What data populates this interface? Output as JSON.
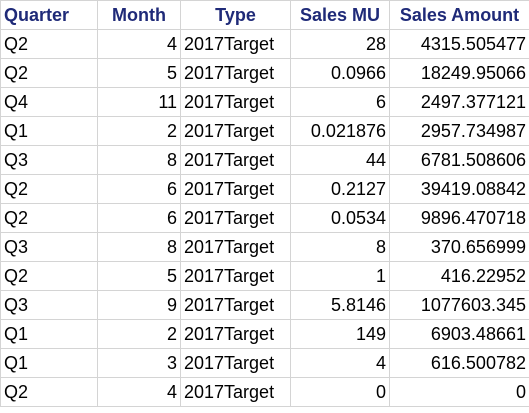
{
  "sheet": {
    "header_color": "#1f2a78",
    "columns": [
      "Quarter",
      "Month",
      "Type",
      "Sales MU",
      "Sales Amount"
    ],
    "rows": [
      {
        "quarter": "Q2",
        "month": "4",
        "type": "2017Target",
        "sales_mu": "28",
        "sales_amount": "4315.505477"
      },
      {
        "quarter": "Q2",
        "month": "5",
        "type": "2017Target",
        "sales_mu": "0.0966",
        "sales_amount": "18249.95066"
      },
      {
        "quarter": "Q4",
        "month": "11",
        "type": "2017Target",
        "sales_mu": "6",
        "sales_amount": "2497.377121"
      },
      {
        "quarter": "Q1",
        "month": "2",
        "type": "2017Target",
        "sales_mu": "0.021876",
        "sales_amount": "2957.734987"
      },
      {
        "quarter": "Q3",
        "month": "8",
        "type": "2017Target",
        "sales_mu": "44",
        "sales_amount": "6781.508606"
      },
      {
        "quarter": "Q2",
        "month": "6",
        "type": "2017Target",
        "sales_mu": "0.2127",
        "sales_amount": "39419.08842"
      },
      {
        "quarter": "Q2",
        "month": "6",
        "type": "2017Target",
        "sales_mu": "0.0534",
        "sales_amount": "9896.470718"
      },
      {
        "quarter": "Q3",
        "month": "8",
        "type": "2017Target",
        "sales_mu": "8",
        "sales_amount": "370.656999"
      },
      {
        "quarter": "Q2",
        "month": "5",
        "type": "2017Target",
        "sales_mu": "1",
        "sales_amount": "416.22952"
      },
      {
        "quarter": "Q3",
        "month": "9",
        "type": "2017Target",
        "sales_mu": "5.8146",
        "sales_amount": "1077603.345"
      },
      {
        "quarter": "Q1",
        "month": "2",
        "type": "2017Target",
        "sales_mu": "149",
        "sales_amount": "6903.48661"
      },
      {
        "quarter": "Q1",
        "month": "3",
        "type": "2017Target",
        "sales_mu": "4",
        "sales_amount": "616.500782"
      },
      {
        "quarter": "Q2",
        "month": "4",
        "type": "2017Target",
        "sales_mu": "0",
        "sales_amount": "0"
      }
    ]
  }
}
